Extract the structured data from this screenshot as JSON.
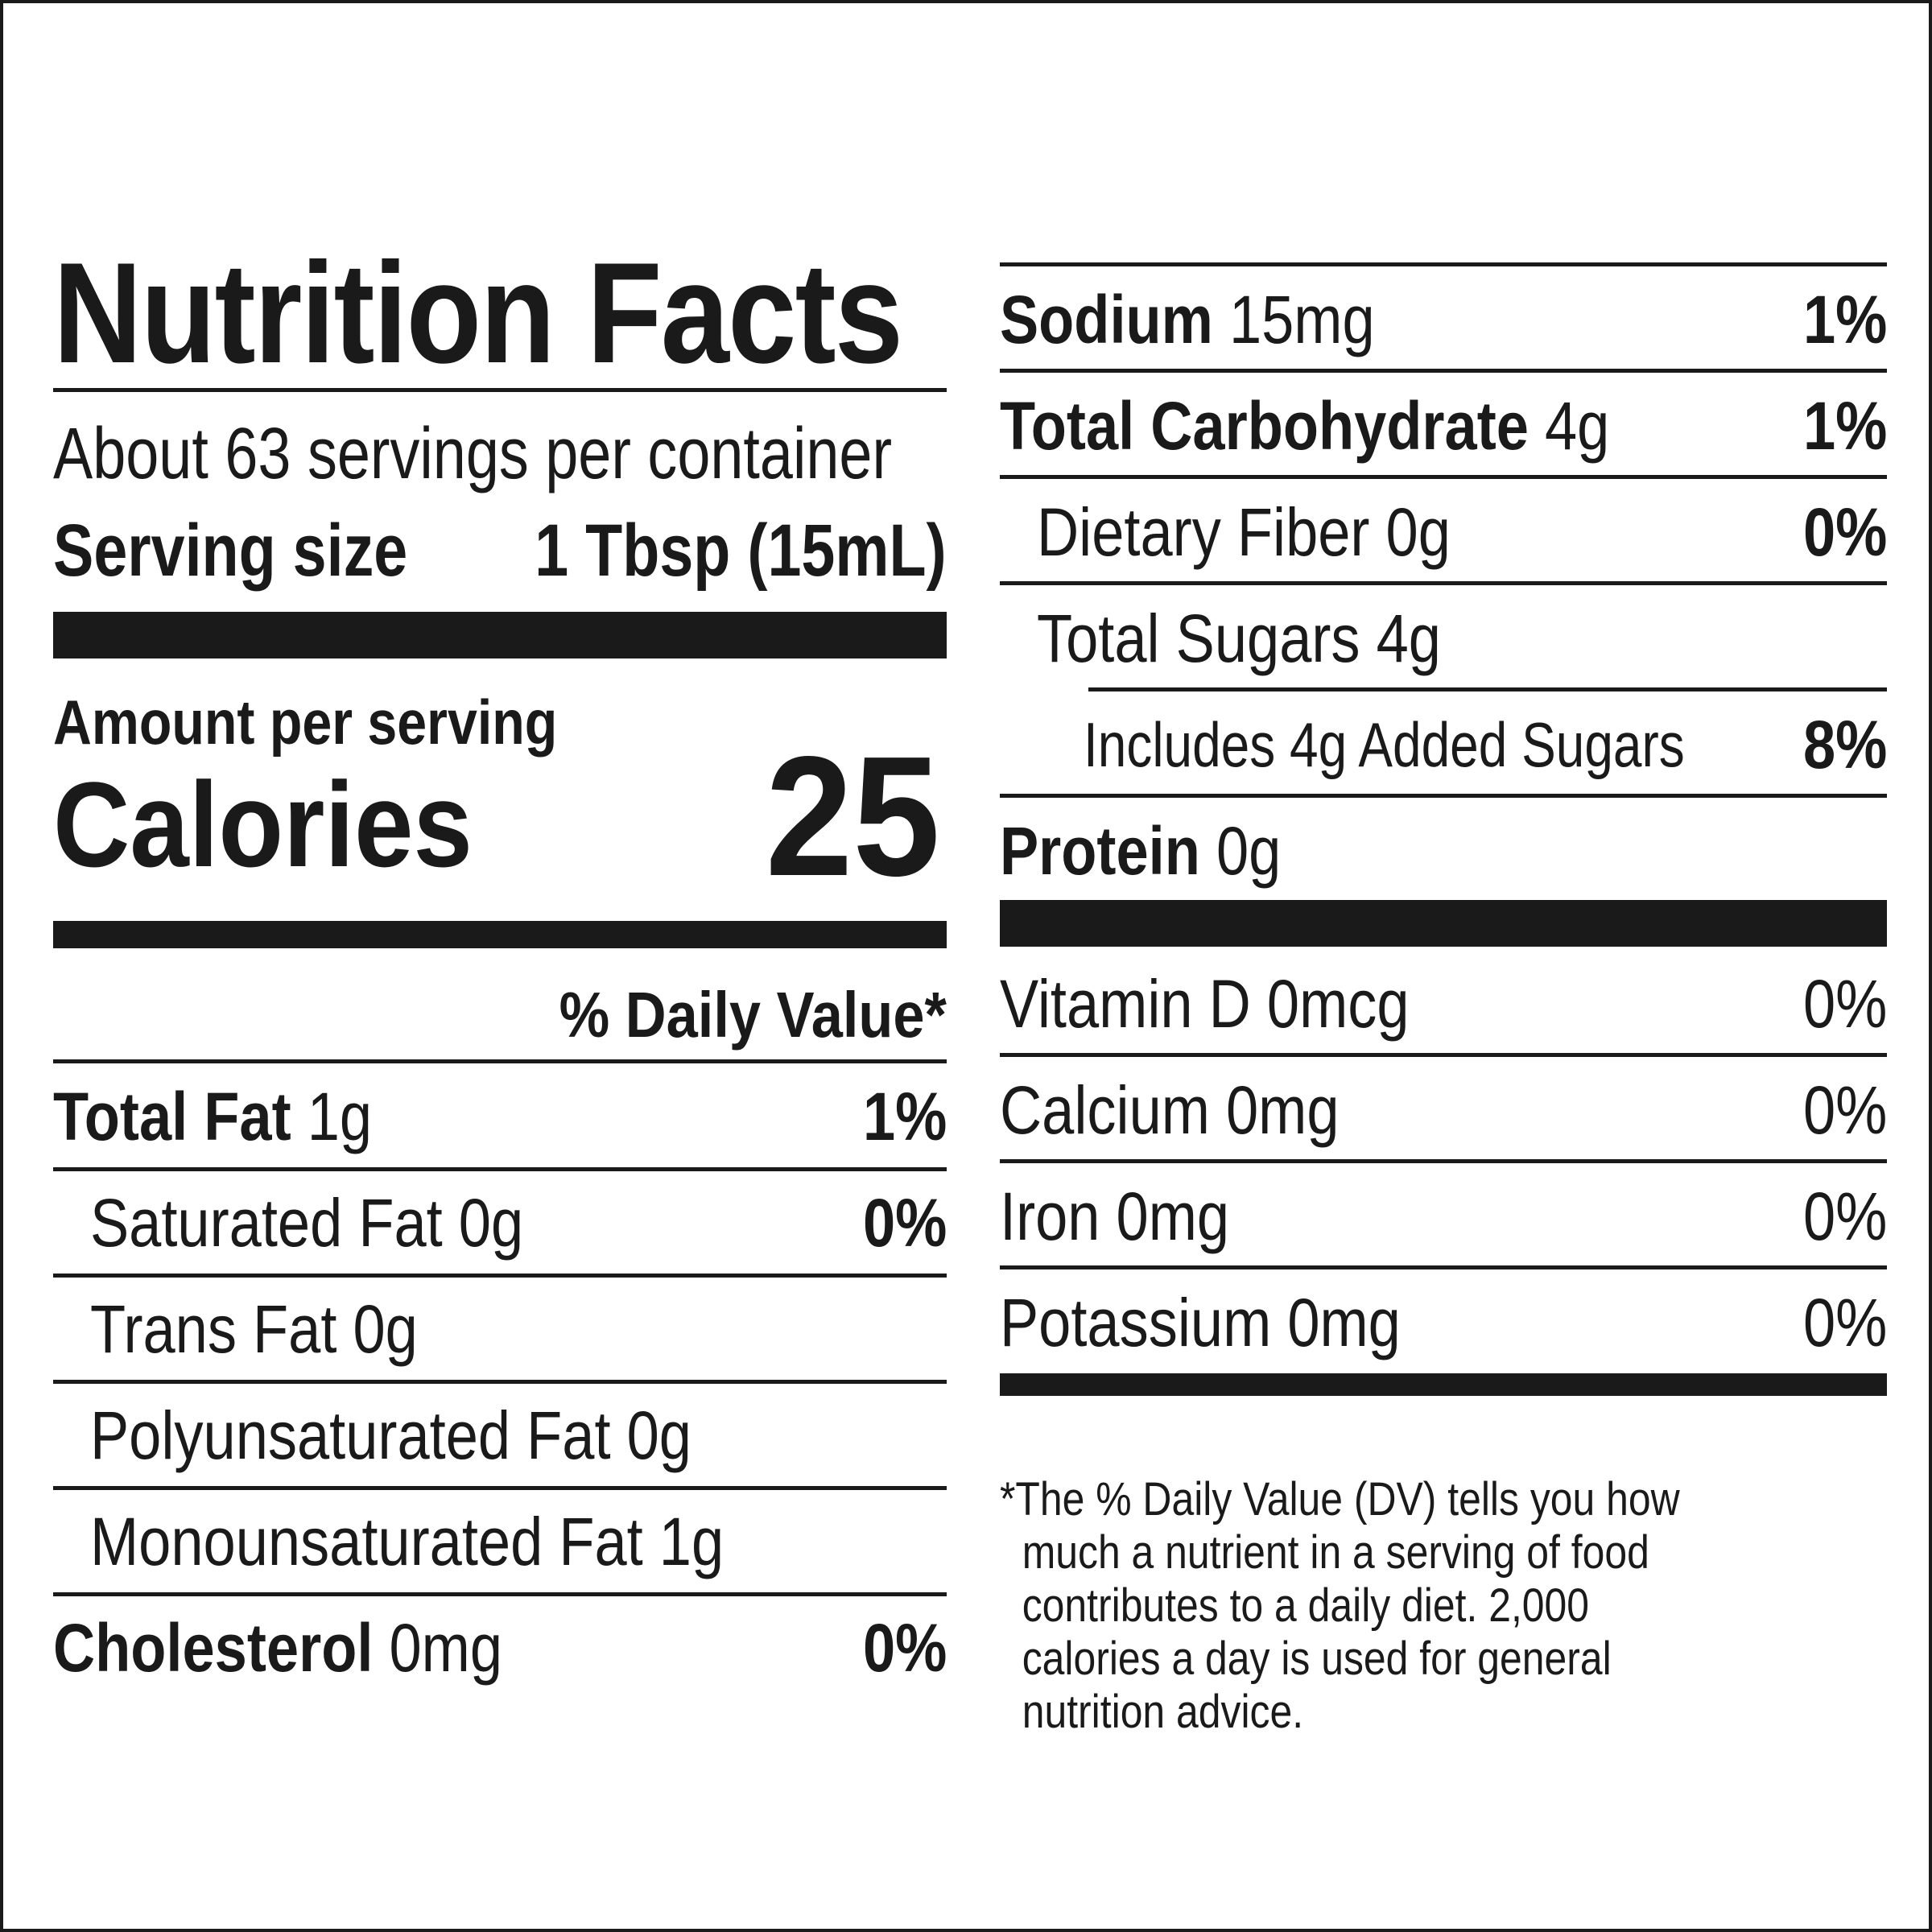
{
  "title": "Nutrition Facts",
  "servings_per_container": "About 63 servings per container",
  "serving_size_label": "Serving size",
  "serving_size_value": "1 Tbsp (15mL)",
  "amount_per_serving": "Amount per serving",
  "calories_label": "Calories",
  "calories_value": "25",
  "daily_value_header": "% Daily Value*",
  "left_nutrients": [
    {
      "name": "Total Fat",
      "amount": "1g",
      "dv": "1%"
    },
    {
      "name": "Saturated Fat 0g",
      "dv": "0%"
    },
    {
      "name": "Trans Fat 0g",
      "dv": ""
    },
    {
      "name": "Polyunsaturated Fat 0g",
      "dv": ""
    },
    {
      "name": "Monounsaturated Fat 1g",
      "dv": ""
    },
    {
      "name": "Cholesterol",
      "amount": "0mg",
      "dv": "0%"
    }
  ],
  "right_nutrients": [
    {
      "name": "Sodium",
      "amount": "15mg",
      "dv": "1%"
    },
    {
      "name": "Total Carbohydrate",
      "amount": "4g",
      "dv": "1%"
    },
    {
      "name": "Dietary Fiber 0g",
      "dv": "0%"
    },
    {
      "name": "Total Sugars 4g",
      "dv": ""
    },
    {
      "name": "Includes 4g Added Sugars",
      "dv": "8%"
    },
    {
      "name": "Protein",
      "amount": "0g",
      "dv": ""
    }
  ],
  "vitamins": [
    {
      "name": "Vitamin D 0mcg",
      "dv": "0%"
    },
    {
      "name": "Calcium 0mg",
      "dv": "0%"
    },
    {
      "name": "Iron 0mg",
      "dv": "0%"
    },
    {
      "name": "Potassium 0mg",
      "dv": "0%"
    }
  ],
  "footnote": "*The % Daily Value (DV) tells you how\n  much a nutrient in a serving of food\n  contributes to a daily diet. 2,000\n  calories a day is used for general\n  nutrition advice."
}
